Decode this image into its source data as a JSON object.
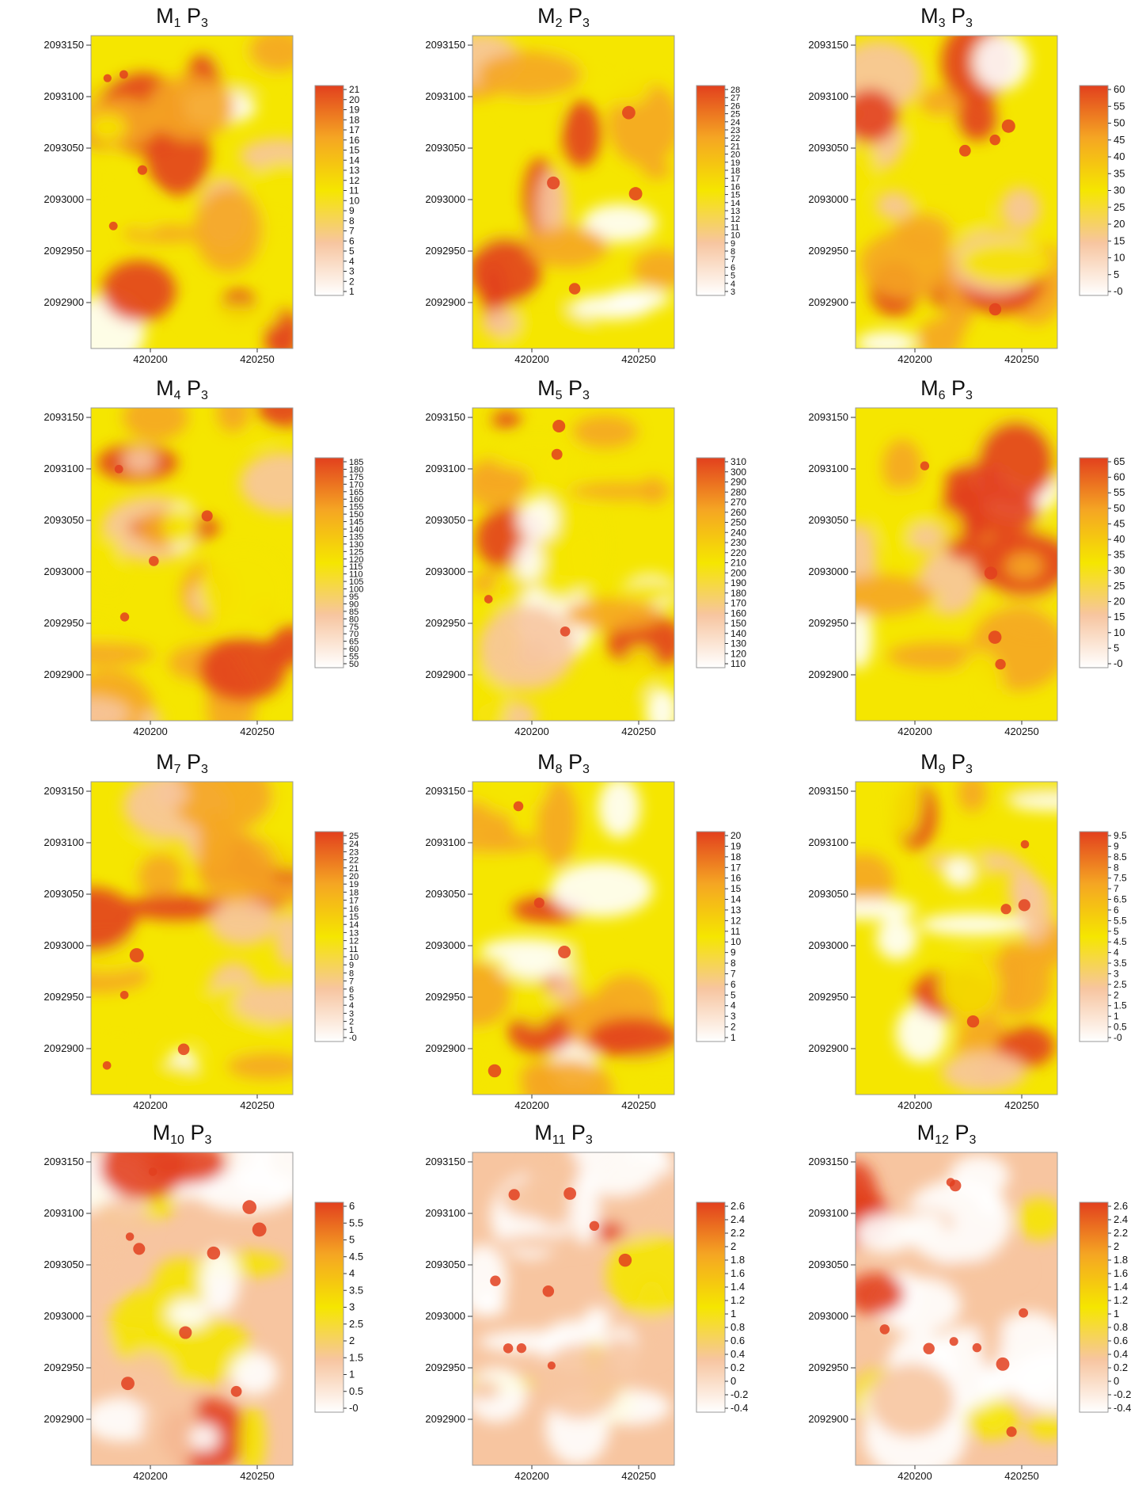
{
  "chart_data": [
    {
      "type": "heatmap",
      "title_base": "M",
      "title_index": "1",
      "title_suffix": "P",
      "title_suffix_index": "3",
      "colorbar": [
        "21",
        "20",
        "19",
        "18",
        "17",
        "16",
        "15",
        "14",
        "13",
        "12",
        "11",
        "10",
        "9",
        "8",
        "7",
        "6",
        "5",
        "4",
        "3",
        "2",
        "1"
      ],
      "ytick_labels": [
        "2093150",
        "2093100",
        "2093050",
        "2093000",
        "2092950",
        "2092900"
      ],
      "xtick_labels": [
        "420200",
        "420250"
      ]
    },
    {
      "type": "heatmap",
      "title_base": "M",
      "title_index": "2",
      "title_suffix": "P",
      "title_suffix_index": "3",
      "colorbar": [
        "28",
        "27",
        "26",
        "25",
        "24",
        "23",
        "22",
        "21",
        "20",
        "19",
        "18",
        "17",
        "16",
        "15",
        "14",
        "13",
        "12",
        "11",
        "10",
        "9",
        "8",
        "7",
        "6",
        "5",
        "4",
        "3"
      ],
      "ytick_labels": [
        "2093150",
        "2093100",
        "2093050",
        "2093000",
        "2092950",
        "2092900"
      ],
      "xtick_labels": [
        "420200",
        "420250"
      ]
    },
    {
      "type": "heatmap",
      "title_base": "M",
      "title_index": "3",
      "title_suffix": "P",
      "title_suffix_index": "3",
      "colorbar": [
        "60",
        "55",
        "50",
        "45",
        "40",
        "35",
        "30",
        "25",
        "20",
        "15",
        "10",
        "5",
        "-0"
      ],
      "ytick_labels": [
        "2093150",
        "2093100",
        "2093050",
        "2093000",
        "2092950",
        "2092900"
      ],
      "xtick_labels": [
        "420200",
        "420250"
      ]
    },
    {
      "type": "heatmap",
      "title_base": "M",
      "title_index": "4",
      "title_suffix": "P",
      "title_suffix_index": "3",
      "colorbar": [
        "185",
        "180",
        "175",
        "170",
        "165",
        "160",
        "155",
        "150",
        "145",
        "140",
        "135",
        "130",
        "125",
        "120",
        "115",
        "110",
        "105",
        "100",
        "95",
        "90",
        "85",
        "80",
        "75",
        "70",
        "65",
        "60",
        "55",
        "50"
      ],
      "ytick_labels": [
        "2093150",
        "2093100",
        "2093050",
        "2093000",
        "2092950",
        "2092900"
      ],
      "xtick_labels": [
        "420200",
        "420250"
      ]
    },
    {
      "type": "heatmap",
      "title_base": "M",
      "title_index": "5",
      "title_suffix": "P",
      "title_suffix_index": "3",
      "colorbar": [
        "310",
        "300",
        "290",
        "280",
        "270",
        "260",
        "250",
        "240",
        "230",
        "220",
        "210",
        "200",
        "190",
        "180",
        "170",
        "160",
        "150",
        "140",
        "130",
        "120",
        "110"
      ],
      "ytick_labels": [
        "2093150",
        "2093100",
        "2093050",
        "2093000",
        "2092950",
        "2092900"
      ],
      "xtick_labels": [
        "420200",
        "420250"
      ]
    },
    {
      "type": "heatmap",
      "title_base": "M",
      "title_index": "6",
      "title_suffix": "P",
      "title_suffix_index": "3",
      "colorbar": [
        "65",
        "60",
        "55",
        "50",
        "45",
        "40",
        "35",
        "30",
        "25",
        "20",
        "15",
        "10",
        "5",
        "-0"
      ],
      "ytick_labels": [
        "2093150",
        "2093100",
        "2093050",
        "2093000",
        "2092950",
        "2092900"
      ],
      "xtick_labels": [
        "420200",
        "420250"
      ]
    },
    {
      "type": "heatmap",
      "title_base": "M",
      "title_index": "7",
      "title_suffix": "P",
      "title_suffix_index": "3",
      "colorbar": [
        "25",
        "24",
        "23",
        "22",
        "21",
        "20",
        "19",
        "18",
        "17",
        "16",
        "15",
        "14",
        "13",
        "12",
        "11",
        "10",
        "9",
        "8",
        "7",
        "6",
        "5",
        "4",
        "3",
        "2",
        "1",
        "-0"
      ],
      "ytick_labels": [
        "2093150",
        "2093100",
        "2093050",
        "2093000",
        "2092950",
        "2092900"
      ],
      "xtick_labels": [
        "420200",
        "420250"
      ]
    },
    {
      "type": "heatmap",
      "title_base": "M",
      "title_index": "8",
      "title_suffix": "P",
      "title_suffix_index": "3",
      "colorbar": [
        "20",
        "19",
        "18",
        "17",
        "16",
        "15",
        "14",
        "13",
        "12",
        "11",
        "10",
        "9",
        "8",
        "7",
        "6",
        "5",
        "4",
        "3",
        "2",
        "1"
      ],
      "ytick_labels": [
        "2093150",
        "2093100",
        "2093050",
        "2093000",
        "2092950",
        "2092900"
      ],
      "xtick_labels": [
        "420200",
        "420250"
      ]
    },
    {
      "type": "heatmap",
      "title_base": "M",
      "title_index": "9",
      "title_suffix": "P",
      "title_suffix_index": "3",
      "colorbar": [
        "9.5",
        "9",
        "8.5",
        "8",
        "7.5",
        "7",
        "6.5",
        "6",
        "5.5",
        "5",
        "4.5",
        "4",
        "3.5",
        "3",
        "2.5",
        "2",
        "1.5",
        "1",
        "0.5",
        "-0"
      ],
      "ytick_labels": [
        "2093150",
        "2093100",
        "2093050",
        "2093000",
        "2092950",
        "2092900"
      ],
      "xtick_labels": [
        "420200",
        "420250"
      ]
    },
    {
      "type": "heatmap",
      "title_base": "M",
      "title_index": "10",
      "title_suffix": "P",
      "title_suffix_index": "3",
      "colorbar": [
        "6",
        "5.5",
        "5",
        "4.5",
        "4",
        "3.5",
        "3",
        "2.5",
        "2",
        "1.5",
        "1",
        "0.5",
        "-0"
      ],
      "ytick_labels": [
        "2093150",
        "2093100",
        "2093050",
        "2093000",
        "2092950",
        "2092900"
      ],
      "xtick_labels": [
        "420200",
        "420250"
      ]
    },
    {
      "type": "heatmap",
      "title_base": "M",
      "title_index": "11",
      "title_suffix": "P",
      "title_suffix_index": "3",
      "colorbar": [
        "2.6",
        "2.4",
        "2.2",
        "2",
        "1.8",
        "1.6",
        "1.4",
        "1.2",
        "1",
        "0.8",
        "0.6",
        "0.4",
        "0.2",
        "0",
        "-0.2",
        "-0.4"
      ],
      "ytick_labels": [
        "2093150",
        "2093100",
        "2093050",
        "2093000",
        "2092950",
        "2092900"
      ],
      "xtick_labels": [
        "420200",
        "420250"
      ]
    },
    {
      "type": "heatmap",
      "title_base": "M",
      "title_index": "12",
      "title_suffix": "P",
      "title_suffix_index": "3",
      "colorbar": [
        "2.6",
        "2.4",
        "2.2",
        "2",
        "1.8",
        "1.6",
        "1.4",
        "1.2",
        "1",
        "0.8",
        "0.6",
        "0.4",
        "0.2",
        "0",
        "-0.2",
        "-0.4"
      ],
      "ytick_labels": [
        "2093150",
        "2093100",
        "2093050",
        "2093000",
        "2092950",
        "2092900"
      ],
      "xtick_labels": [
        "420200",
        "420250"
      ]
    }
  ],
  "colormap": [
    "#ffffff",
    "#f7c5a0",
    "#f5e600",
    "#f5a623",
    "#e2401e"
  ]
}
